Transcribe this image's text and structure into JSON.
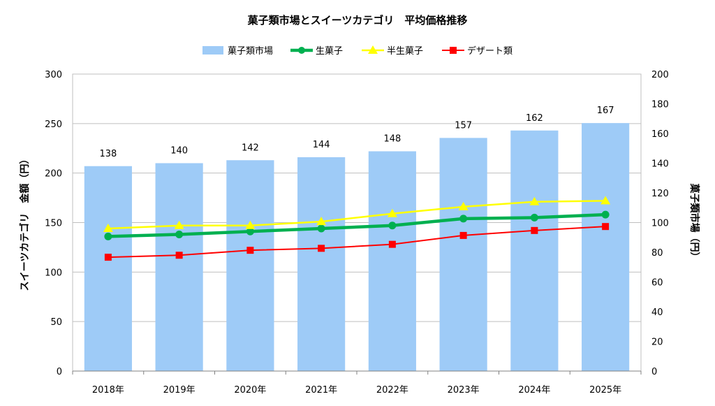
{
  "chart_data": {
    "type": "bar",
    "title": "菓子類市場とスイーツカテゴリ　平均価格推移",
    "categories": [
      "2018年",
      "2019年",
      "2020年",
      "2021年",
      "2022年",
      "2023年",
      "2024年",
      "2025年"
    ],
    "bar_series": {
      "name": "菓子類市場",
      "axis": "right",
      "color": "#9ecbf7",
      "values": [
        138,
        140,
        142,
        144,
        148,
        157,
        162,
        167
      ],
      "labels": [
        "138",
        "140",
        "142",
        "144",
        "148",
        "157",
        "162",
        "167"
      ]
    },
    "line_series": [
      {
        "name": "生菓子",
        "axis": "left",
        "color": "#00b050",
        "marker": "circle",
        "values": [
          136,
          138,
          141,
          144,
          147,
          154,
          155,
          158
        ]
      },
      {
        "name": "半生菓子",
        "axis": "left",
        "color": "#ffff00",
        "marker": "triangle",
        "values": [
          144,
          147,
          147,
          151,
          159,
          166,
          171,
          172
        ]
      },
      {
        "name": "デザート類",
        "axis": "left",
        "color": "#ff0000",
        "marker": "square",
        "values": [
          115,
          117,
          122,
          124,
          128,
          137,
          142,
          146
        ]
      }
    ],
    "legend_order": [
      "菓子類市場",
      "生菓子",
      "半生菓子",
      "デザート類"
    ],
    "legend_position": "top",
    "y_left": {
      "label": "スイーツカテゴリ　金額（円）",
      "range": [
        0,
        300
      ],
      "ticks": [
        "0",
        "50",
        "100",
        "150",
        "200",
        "250",
        "300"
      ]
    },
    "y_right": {
      "label": "菓子類市場（円）",
      "range": [
        0,
        200
      ],
      "ticks": [
        "0",
        "20",
        "40",
        "60",
        "80",
        "100",
        "120",
        "140",
        "160",
        "180",
        "200"
      ]
    },
    "grid": true
  }
}
